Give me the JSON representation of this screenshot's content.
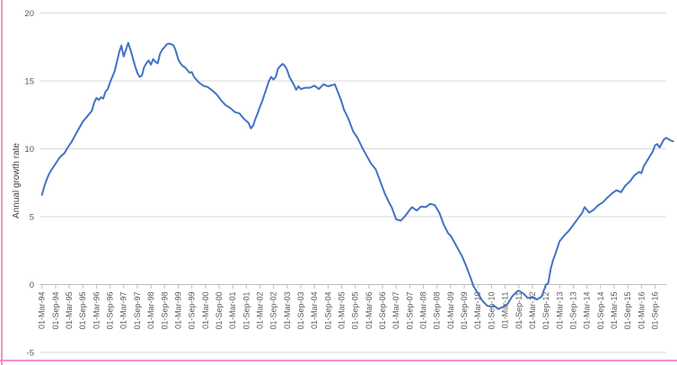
{
  "chart_data": {
    "type": "line",
    "title": "",
    "xlabel": "",
    "ylabel": "Annual growth rate",
    "ylim": [
      -5,
      20
    ],
    "yticks": [
      20,
      15,
      10,
      5,
      0,
      -5
    ],
    "grid": true,
    "legend": false,
    "x_tick_labels": [
      "01-Mar-94",
      "01-Sep-94",
      "01-Mar-95",
      "01-Sep-95",
      "01-Mar-96",
      "01-Sep-96",
      "01-Mar-97",
      "01-Sep-97",
      "01-Mar-98",
      "01-Sep-98",
      "01-Mar-99",
      "01-Sep-99",
      "01-Mar-00",
      "01-Sep-00",
      "01-Mar-01",
      "01-Sep-01",
      "01-Mar-02",
      "01-Sep-02",
      "01-Mar-03",
      "01-Sep-03",
      "01-Mar-04",
      "01-Sep-04",
      "01-Mar-05",
      "01-Sep-05",
      "01-Mar-06",
      "01-Sep-06",
      "01-Mar-07",
      "01-Sep-07",
      "01-Mar-08",
      "01-Sep-08",
      "01-Mar-09",
      "01-Sep-09",
      "01-Mar-10",
      "01-Sep-10",
      "01-Mar-11",
      "01-Sep-11",
      "01-Mar-12",
      "01-Sep-12",
      "01-Mar-13",
      "01-Sep-13",
      "01-Mar-14",
      "01-Sep-14",
      "01-Mar-15",
      "01-Sep-15",
      "01-Mar-16",
      "01-Sep-16"
    ],
    "series": [
      {
        "name": "annual-growth-rate",
        "color": "#4472C4",
        "points": [
          [
            "1994-03",
            6.6
          ],
          [
            "1994-04",
            7.2
          ],
          [
            "1994-05",
            7.7
          ],
          [
            "1994-06",
            8.1
          ],
          [
            "1994-07",
            8.4
          ],
          [
            "1994-09",
            8.9
          ],
          [
            "1994-11",
            9.4
          ],
          [
            "1995-01",
            9.7
          ],
          [
            "1995-02",
            10.0
          ],
          [
            "1995-04",
            10.5
          ],
          [
            "1995-06",
            11.1
          ],
          [
            "1995-08",
            11.7
          ],
          [
            "1995-09",
            12.0
          ],
          [
            "1995-11",
            12.4
          ],
          [
            "1996-01",
            12.8
          ],
          [
            "1996-02",
            13.4
          ],
          [
            "1996-03",
            13.75
          ],
          [
            "1996-04",
            13.6
          ],
          [
            "1996-05",
            13.8
          ],
          [
            "1996-06",
            13.7
          ],
          [
            "1996-07",
            14.2
          ],
          [
            "1996-08",
            14.4
          ],
          [
            "1996-09",
            14.9
          ],
          [
            "1996-10",
            15.3
          ],
          [
            "1996-11",
            15.7
          ],
          [
            "1996-12",
            16.4
          ],
          [
            "1997-01",
            17.1
          ],
          [
            "1997-02",
            17.6
          ],
          [
            "1997-03",
            16.8
          ],
          [
            "1997-04",
            17.3
          ],
          [
            "1997-05",
            17.8
          ],
          [
            "1997-06",
            17.3
          ],
          [
            "1997-07",
            16.7
          ],
          [
            "1997-08",
            16.1
          ],
          [
            "1997-09",
            15.6
          ],
          [
            "1997-10",
            15.3
          ],
          [
            "1997-11",
            15.4
          ],
          [
            "1997-12",
            16.0
          ],
          [
            "1998-01",
            16.3
          ],
          [
            "1998-02",
            16.5
          ],
          [
            "1998-03",
            16.2
          ],
          [
            "1998-04",
            16.6
          ],
          [
            "1998-05",
            16.4
          ],
          [
            "1998-06",
            16.3
          ],
          [
            "1998-07",
            17.0
          ],
          [
            "1998-08",
            17.3
          ],
          [
            "1998-09",
            17.5
          ],
          [
            "1998-10",
            17.7
          ],
          [
            "1998-11",
            17.75
          ],
          [
            "1998-12",
            17.7
          ],
          [
            "1999-01",
            17.6
          ],
          [
            "1999-02",
            17.2
          ],
          [
            "1999-03",
            16.6
          ],
          [
            "1999-04",
            16.3
          ],
          [
            "1999-05",
            16.1
          ],
          [
            "1999-06",
            16.0
          ],
          [
            "1999-07",
            15.8
          ],
          [
            "1999-08",
            15.6
          ],
          [
            "1999-09",
            15.65
          ],
          [
            "1999-10",
            15.3
          ],
          [
            "1999-12",
            14.9
          ],
          [
            "2000-02",
            14.65
          ],
          [
            "2000-04",
            14.55
          ],
          [
            "2000-06",
            14.3
          ],
          [
            "2000-08",
            14.0
          ],
          [
            "2000-10",
            13.55
          ],
          [
            "2000-12",
            13.2
          ],
          [
            "2001-02",
            13.0
          ],
          [
            "2001-04",
            12.7
          ],
          [
            "2001-06",
            12.6
          ],
          [
            "2001-08",
            12.2
          ],
          [
            "2001-10",
            11.9
          ],
          [
            "2001-11",
            11.5
          ],
          [
            "2001-12",
            11.7
          ],
          [
            "2002-01",
            12.2
          ],
          [
            "2002-02",
            12.6
          ],
          [
            "2002-03",
            13.1
          ],
          [
            "2002-04",
            13.5
          ],
          [
            "2002-05",
            14.0
          ],
          [
            "2002-06",
            14.5
          ],
          [
            "2002-07",
            15.0
          ],
          [
            "2002-08",
            15.3
          ],
          [
            "2002-09",
            15.1
          ],
          [
            "2002-10",
            15.3
          ],
          [
            "2002-11",
            15.9
          ],
          [
            "2002-12",
            16.1
          ],
          [
            "2003-01",
            16.25
          ],
          [
            "2003-02",
            16.1
          ],
          [
            "2003-03",
            15.8
          ],
          [
            "2003-04",
            15.3
          ],
          [
            "2003-05",
            15.0
          ],
          [
            "2003-06",
            14.7
          ],
          [
            "2003-07",
            14.35
          ],
          [
            "2003-08",
            14.6
          ],
          [
            "2003-09",
            14.4
          ],
          [
            "2003-11",
            14.5
          ],
          [
            "2004-01",
            14.5
          ],
          [
            "2004-03",
            14.65
          ],
          [
            "2004-05",
            14.4
          ],
          [
            "2004-07",
            14.75
          ],
          [
            "2004-09",
            14.6
          ],
          [
            "2004-12",
            14.75
          ],
          [
            "2005-02",
            13.9
          ],
          [
            "2005-03",
            13.45
          ],
          [
            "2005-04",
            12.9
          ],
          [
            "2005-06",
            12.2
          ],
          [
            "2005-08",
            11.3
          ],
          [
            "2005-10",
            10.8
          ],
          [
            "2005-12",
            10.1
          ],
          [
            "2006-02",
            9.5
          ],
          [
            "2006-04",
            8.9
          ],
          [
            "2006-06",
            8.5
          ],
          [
            "2006-08",
            7.6
          ],
          [
            "2006-10",
            6.7
          ],
          [
            "2006-12",
            6.0
          ],
          [
            "2007-01",
            5.7
          ],
          [
            "2007-03",
            4.8
          ],
          [
            "2007-05",
            4.7
          ],
          [
            "2007-07",
            5.05
          ],
          [
            "2007-09",
            5.5
          ],
          [
            "2007-10",
            5.7
          ],
          [
            "2007-12",
            5.45
          ],
          [
            "2008-02",
            5.75
          ],
          [
            "2008-04",
            5.7
          ],
          [
            "2008-06",
            5.95
          ],
          [
            "2008-08",
            5.85
          ],
          [
            "2008-10",
            5.3
          ],
          [
            "2008-12",
            4.4
          ],
          [
            "2009-02",
            3.75
          ],
          [
            "2009-03",
            3.6
          ],
          [
            "2009-05",
            3.0
          ],
          [
            "2009-07",
            2.4
          ],
          [
            "2009-08",
            2.1
          ],
          [
            "2009-10",
            1.3
          ],
          [
            "2009-11",
            0.85
          ],
          [
            "2009-12",
            0.4
          ],
          [
            "2010-01",
            -0.1
          ],
          [
            "2010-03",
            -0.65
          ],
          [
            "2010-05",
            -1.2
          ],
          [
            "2010-07",
            -1.55
          ],
          [
            "2010-09",
            -1.65
          ],
          [
            "2010-10",
            -1.55
          ],
          [
            "2010-12",
            -1.8
          ],
          [
            "2011-02",
            -1.65
          ],
          [
            "2011-04",
            -1.45
          ],
          [
            "2011-06",
            -0.9
          ],
          [
            "2011-08",
            -0.55
          ],
          [
            "2011-09",
            -0.45
          ],
          [
            "2011-11",
            -0.65
          ],
          [
            "2012-01",
            -1.0
          ],
          [
            "2012-03",
            -0.9
          ],
          [
            "2012-05",
            -1.1
          ],
          [
            "2012-07",
            -0.9
          ],
          [
            "2012-08",
            -0.45
          ],
          [
            "2012-09",
            0.0
          ],
          [
            "2012-10",
            0.1
          ],
          [
            "2012-11",
            1.1
          ],
          [
            "2012-12",
            1.75
          ],
          [
            "2013-01",
            2.2
          ],
          [
            "2013-03",
            3.2
          ],
          [
            "2013-05",
            3.6
          ],
          [
            "2013-07",
            3.95
          ],
          [
            "2013-09",
            4.4
          ],
          [
            "2013-11",
            4.85
          ],
          [
            "2014-01",
            5.3
          ],
          [
            "2014-02",
            5.7
          ],
          [
            "2014-04",
            5.3
          ],
          [
            "2014-06",
            5.5
          ],
          [
            "2014-08",
            5.85
          ],
          [
            "2014-10",
            6.05
          ],
          [
            "2014-12",
            6.4
          ],
          [
            "2015-02",
            6.7
          ],
          [
            "2015-04",
            6.95
          ],
          [
            "2015-06",
            6.8
          ],
          [
            "2015-08",
            7.3
          ],
          [
            "2015-10",
            7.6
          ],
          [
            "2015-12",
            8.05
          ],
          [
            "2016-02",
            8.3
          ],
          [
            "2016-03",
            8.2
          ],
          [
            "2016-04",
            8.7
          ],
          [
            "2016-06",
            9.25
          ],
          [
            "2016-08",
            9.8
          ],
          [
            "2016-09",
            10.25
          ],
          [
            "2016-10",
            10.35
          ],
          [
            "2016-11",
            10.1
          ],
          [
            "2017-01",
            10.7
          ],
          [
            "2017-02",
            10.8
          ],
          [
            "2017-04",
            10.6
          ],
          [
            "2017-05",
            10.55
          ]
        ]
      }
    ]
  },
  "style": {
    "background": "#FFFFFF",
    "line_color": "#4472C4",
    "grid_color": "#D9D9D9",
    "axis_line_color": "#BFBFBF",
    "tick_label_color": "#595959",
    "axis_title_color": "#404040",
    "border_accent_pink": "#F291C4"
  }
}
